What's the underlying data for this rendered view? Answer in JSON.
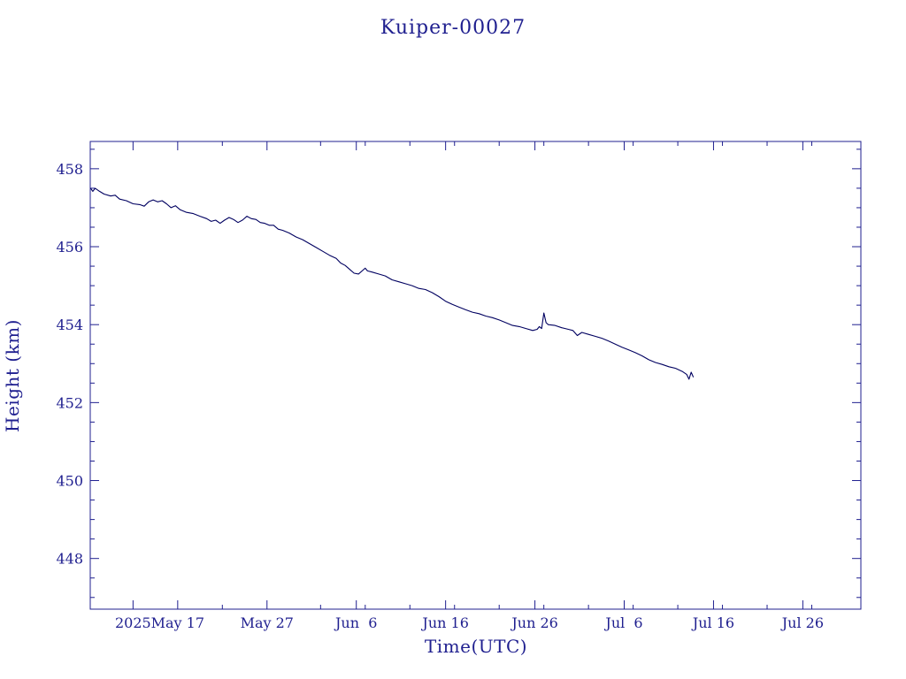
{
  "colors": {
    "ink": "#1f1f8f",
    "line": "#000060",
    "background": "#ffffff"
  },
  "chart_data": {
    "type": "line",
    "title": "Kuiper-00027",
    "xlabel": "Time(UTC)",
    "ylabel": "Height (km)",
    "x_type": "date",
    "xlim": [
      "2025-05-07 05:00",
      "2025-08-01 12:00"
    ],
    "ylim": [
      446.7,
      458.7
    ],
    "grid": false,
    "legend": "none",
    "x_ticks": [
      {
        "date": "2025-05-12",
        "label": "2025"
      },
      {
        "date": "2025-05-17",
        "label": "May 17"
      },
      {
        "date": "2025-05-27",
        "label": "May 27"
      },
      {
        "date": "2025-06-06",
        "label": "Jun  6"
      },
      {
        "date": "2025-06-16",
        "label": "Jun 16"
      },
      {
        "date": "2025-06-26",
        "label": "Jun 26"
      },
      {
        "date": "2025-07-06",
        "label": "Jul  6"
      },
      {
        "date": "2025-07-16",
        "label": "Jul 16"
      },
      {
        "date": "2025-07-26",
        "label": "Jul 26"
      }
    ],
    "y_ticks": [
      {
        "value": 448,
        "label": "448"
      },
      {
        "value": 450,
        "label": "450"
      },
      {
        "value": 452,
        "label": "452"
      },
      {
        "value": 454,
        "label": "454"
      },
      {
        "value": 456,
        "label": "456"
      },
      {
        "value": 458,
        "label": "458"
      }
    ],
    "series": [
      {
        "color": "#000060",
        "points": [
          [
            "2025-05-07 06:00",
            457.5
          ],
          [
            "2025-05-07 12:00",
            457.42
          ],
          [
            "2025-05-07 18:00",
            457.5
          ],
          [
            "2025-05-08 06:00",
            457.42
          ],
          [
            "2025-05-08 18:00",
            457.35
          ],
          [
            "2025-05-09 12:00",
            457.3
          ],
          [
            "2025-05-10 00:00",
            457.32
          ],
          [
            "2025-05-10 12:00",
            457.22
          ],
          [
            "2025-05-11 06:00",
            457.18
          ],
          [
            "2025-05-12 00:00",
            457.1
          ],
          [
            "2025-05-12 18:00",
            457.08
          ],
          [
            "2025-05-13 06:00",
            457.04
          ],
          [
            "2025-05-13 18:00",
            457.15
          ],
          [
            "2025-05-14 06:00",
            457.2
          ],
          [
            "2025-05-14 18:00",
            457.15
          ],
          [
            "2025-05-15 06:00",
            457.18
          ],
          [
            "2025-05-15 18:00",
            457.1
          ],
          [
            "2025-05-16 06:00",
            457.0
          ],
          [
            "2025-05-16 18:00",
            457.05
          ],
          [
            "2025-05-17 06:00",
            456.95
          ],
          [
            "2025-05-18 00:00",
            456.88
          ],
          [
            "2025-05-18 18:00",
            456.85
          ],
          [
            "2025-05-19 12:00",
            456.78
          ],
          [
            "2025-05-20 06:00",
            456.72
          ],
          [
            "2025-05-20 18:00",
            456.65
          ],
          [
            "2025-05-21 06:00",
            456.68
          ],
          [
            "2025-05-21 18:00",
            456.6
          ],
          [
            "2025-05-22 06:00",
            456.68
          ],
          [
            "2025-05-22 18:00",
            456.75
          ],
          [
            "2025-05-23 06:00",
            456.7
          ],
          [
            "2025-05-23 18:00",
            456.62
          ],
          [
            "2025-05-24 06:00",
            456.68
          ],
          [
            "2025-05-24 18:00",
            456.78
          ],
          [
            "2025-05-25 06:00",
            456.72
          ],
          [
            "2025-05-25 18:00",
            456.7
          ],
          [
            "2025-05-26 06:00",
            456.62
          ],
          [
            "2025-05-26 18:00",
            456.6
          ],
          [
            "2025-05-27 06:00",
            456.55
          ],
          [
            "2025-05-27 18:00",
            456.55
          ],
          [
            "2025-05-28 06:00",
            456.45
          ],
          [
            "2025-05-28 18:00",
            456.42
          ],
          [
            "2025-05-29 12:00",
            456.35
          ],
          [
            "2025-05-30 06:00",
            456.25
          ],
          [
            "2025-05-31 00:00",
            456.18
          ],
          [
            "2025-05-31 18:00",
            456.08
          ],
          [
            "2025-06-01 12:00",
            455.98
          ],
          [
            "2025-06-02 06:00",
            455.88
          ],
          [
            "2025-06-03 00:00",
            455.78
          ],
          [
            "2025-06-03 18:00",
            455.7
          ],
          [
            "2025-06-04 06:00",
            455.58
          ],
          [
            "2025-06-04 18:00",
            455.52
          ],
          [
            "2025-06-05 06:00",
            455.42
          ],
          [
            "2025-06-05 18:00",
            455.32
          ],
          [
            "2025-06-06 06:00",
            455.3
          ],
          [
            "2025-06-06 18:00",
            455.4
          ],
          [
            "2025-06-07 00:00",
            455.45
          ],
          [
            "2025-06-07 06:00",
            455.38
          ],
          [
            "2025-06-07 18:00",
            455.35
          ],
          [
            "2025-06-08 12:00",
            455.3
          ],
          [
            "2025-06-09 06:00",
            455.25
          ],
          [
            "2025-06-10 00:00",
            455.15
          ],
          [
            "2025-06-10 18:00",
            455.1
          ],
          [
            "2025-06-11 12:00",
            455.05
          ],
          [
            "2025-06-12 06:00",
            455.0
          ],
          [
            "2025-06-13 00:00",
            454.93
          ],
          [
            "2025-06-13 18:00",
            454.9
          ],
          [
            "2025-06-14 12:00",
            454.82
          ],
          [
            "2025-06-15 06:00",
            454.72
          ],
          [
            "2025-06-16 00:00",
            454.6
          ],
          [
            "2025-06-16 18:00",
            454.52
          ],
          [
            "2025-06-17 12:00",
            454.45
          ],
          [
            "2025-06-18 06:00",
            454.38
          ],
          [
            "2025-06-19 00:00",
            454.32
          ],
          [
            "2025-06-19 18:00",
            454.28
          ],
          [
            "2025-06-20 12:00",
            454.22
          ],
          [
            "2025-06-21 06:00",
            454.18
          ],
          [
            "2025-06-22 00:00",
            454.12
          ],
          [
            "2025-06-22 18:00",
            454.05
          ],
          [
            "2025-06-23 12:00",
            453.98
          ],
          [
            "2025-06-24 06:00",
            453.95
          ],
          [
            "2025-06-25 00:00",
            453.9
          ],
          [
            "2025-06-25 18:00",
            453.85
          ],
          [
            "2025-06-26 06:00",
            453.88
          ],
          [
            "2025-06-26 12:00",
            453.95
          ],
          [
            "2025-06-26 18:00",
            453.9
          ],
          [
            "2025-06-27 00:00",
            454.3
          ],
          [
            "2025-06-27 06:00",
            454.05
          ],
          [
            "2025-06-27 12:00",
            454.0
          ],
          [
            "2025-06-28 06:00",
            453.98
          ],
          [
            "2025-06-29 00:00",
            453.92
          ],
          [
            "2025-06-29 18:00",
            453.88
          ],
          [
            "2025-06-30 06:00",
            453.85
          ],
          [
            "2025-06-30 18:00",
            453.72
          ],
          [
            "2025-07-01 06:00",
            453.8
          ],
          [
            "2025-07-02 00:00",
            453.75
          ],
          [
            "2025-07-02 18:00",
            453.7
          ],
          [
            "2025-07-03 12:00",
            453.65
          ],
          [
            "2025-07-04 06:00",
            453.58
          ],
          [
            "2025-07-05 00:00",
            453.5
          ],
          [
            "2025-07-05 18:00",
            453.42
          ],
          [
            "2025-07-06 12:00",
            453.35
          ],
          [
            "2025-07-07 06:00",
            453.28
          ],
          [
            "2025-07-08 00:00",
            453.2
          ],
          [
            "2025-07-08 18:00",
            453.1
          ],
          [
            "2025-07-09 12:00",
            453.03
          ],
          [
            "2025-07-10 06:00",
            452.98
          ],
          [
            "2025-07-11 00:00",
            452.92
          ],
          [
            "2025-07-11 18:00",
            452.88
          ],
          [
            "2025-07-12 12:00",
            452.8
          ],
          [
            "2025-07-13 00:00",
            452.72
          ],
          [
            "2025-07-13 06:00",
            452.6
          ],
          [
            "2025-07-13 12:00",
            452.78
          ],
          [
            "2025-07-13 18:00",
            452.65
          ]
        ]
      }
    ]
  }
}
